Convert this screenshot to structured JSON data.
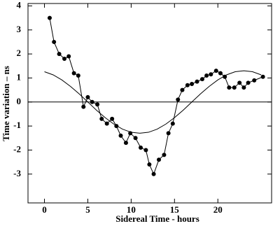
{
  "chart_data": {
    "type": "line",
    "x_label": "Sidereal Time  - hours",
    "y_label": "Time variation – ns",
    "xlim": [
      -1.9,
      26.2
    ],
    "ylim": [
      -4.2,
      4.1
    ],
    "xticks": [
      0,
      5,
      10,
      15,
      20
    ],
    "yticks": [
      -3,
      -2,
      -1,
      0,
      1,
      2,
      3,
      4
    ],
    "zero_line": true,
    "series": [
      {
        "color": "#000000",
        "marker": true,
        "x": [
          0.6,
          1.1,
          1.7,
          2.3,
          2.8,
          3.4,
          3.9,
          4.5,
          5.0,
          5.5,
          6.1,
          6.6,
          7.2,
          7.8,
          8.3,
          8.8,
          9.4,
          9.9,
          10.5,
          11.1,
          11.7,
          12.1,
          12.6,
          13.2,
          13.8,
          14.3,
          14.8,
          15.4,
          15.9,
          16.5,
          17.0,
          17.6,
          18.2,
          18.7,
          19.2,
          19.8,
          20.3,
          20.8,
          21.3,
          21.9,
          22.5,
          23.0,
          23.5,
          24.2,
          25.2
        ],
        "values": [
          3.5,
          2.5,
          2.0,
          1.8,
          1.9,
          1.2,
          1.1,
          -0.2,
          0.2,
          0.0,
          -0.1,
          -0.7,
          -0.9,
          -0.7,
          -1.0,
          -1.4,
          -1.7,
          -1.3,
          -1.5,
          -1.9,
          -2.0,
          -2.6,
          -3.0,
          -2.4,
          -2.2,
          -1.3,
          -0.9,
          0.1,
          0.5,
          0.7,
          0.75,
          0.85,
          0.95,
          1.1,
          1.15,
          1.3,
          1.2,
          1.05,
          0.6,
          0.6,
          0.8,
          0.6,
          0.8,
          0.9,
          1.05
        ]
      },
      {
        "color": "#000000",
        "marker": false,
        "x": [
          0,
          1,
          2,
          3,
          4,
          5,
          6,
          7,
          8,
          9,
          10,
          11,
          12,
          13,
          14,
          15,
          16,
          17,
          18,
          19,
          20,
          21,
          22,
          23,
          24,
          25
        ],
        "values": [
          1.26,
          1.13,
          0.92,
          0.65,
          0.34,
          0.0,
          -0.34,
          -0.65,
          -0.92,
          -1.13,
          -1.26,
          -1.3,
          -1.26,
          -1.13,
          -0.92,
          -0.65,
          -0.34,
          0.0,
          0.34,
          0.65,
          0.92,
          1.13,
          1.26,
          1.3,
          1.26,
          1.13
        ]
      }
    ]
  }
}
